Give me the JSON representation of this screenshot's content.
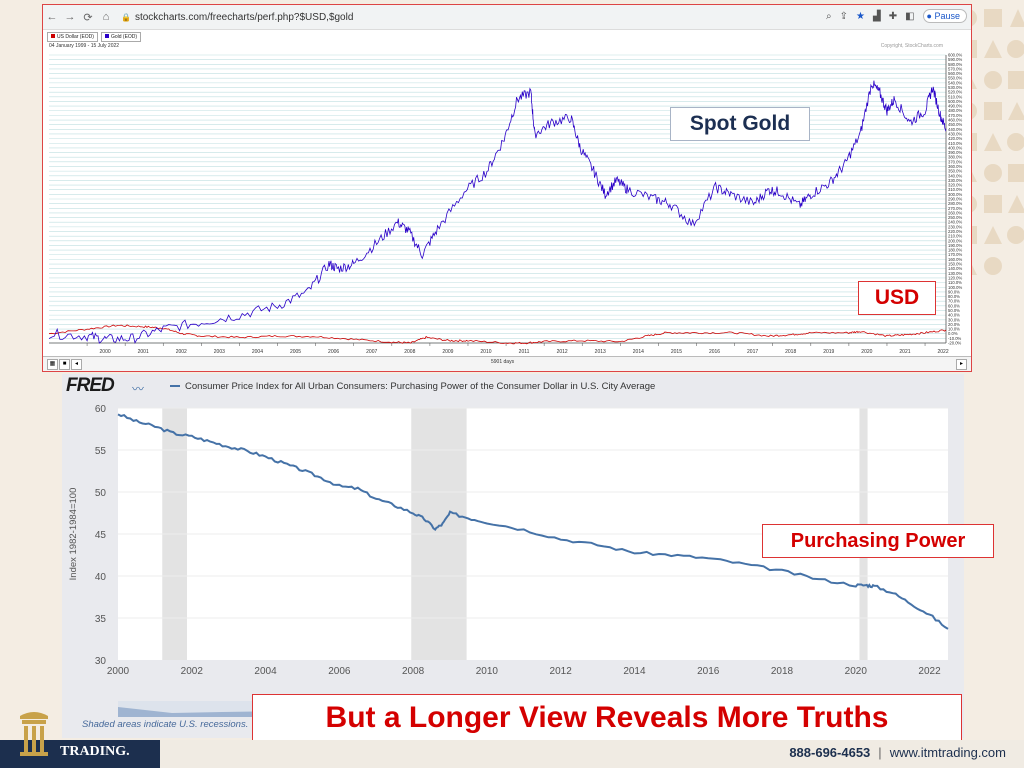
{
  "browser": {
    "url": "stockcharts.com/freecharts/perf.php?$USD,$gold",
    "pause_label": "Pause",
    "icons": [
      "back-icon",
      "forward-icon",
      "reload-icon",
      "home-icon",
      "lock-icon",
      "zoom-icon",
      "share-icon",
      "star-icon",
      "chart-icon",
      "puzzle-icon",
      "sidebar-icon",
      "avatar-icon"
    ]
  },
  "stockcharts": {
    "legend": [
      {
        "label": "US Dollar (EOD)",
        "color": "#cc0000"
      },
      {
        "label": "Gold (EOD)",
        "color": "#2a00c8"
      }
    ],
    "date_range": "04 January 1999 - 15 July 2022",
    "copyright": "Copyright, StockCharts.com",
    "days_label": "5901 days",
    "colors": {
      "gold": "#2a00c8",
      "usd": "#cc0000",
      "grid": "#bfdfe0"
    }
  },
  "callouts": {
    "spot_gold": "Spot Gold",
    "usd": "USD",
    "purchasing_power": "Purchasing Power",
    "headline": "But a Longer View Reveals More Truths"
  },
  "fred": {
    "logo": "FRED",
    "title": "Consumer Price Index for All Urban Consumers: Purchasing Power of the Consumer Dollar in U.S. City Average",
    "note": "Shaded areas indicate U.S. recessions.",
    "recessions": [
      [
        2001.2,
        2001.87
      ],
      [
        2007.95,
        2009.45
      ],
      [
        2020.1,
        2020.32
      ]
    ]
  },
  "footer": {
    "phone": "888-696-4653",
    "site": "www.itmtrading.com",
    "logo_text": "TRADING."
  },
  "chart_data": [
    {
      "type": "line",
      "title": "",
      "ylabel": "",
      "x_ticks": [
        "2000",
        "2001",
        "2002",
        "2003",
        "2004",
        "2005",
        "2006",
        "2007",
        "2008",
        "2009",
        "2010",
        "2011",
        "2012",
        "2013",
        "2014",
        "2015",
        "2016",
        "2017",
        "2018",
        "2019",
        "2020",
        "2021",
        "2022"
      ],
      "ylim": [
        -20,
        600
      ],
      "y_unit": "%",
      "series": [
        {
          "name": "Gold (EOD)",
          "x": [
            1999.0,
            2000.0,
            2000.5,
            2001.2,
            2002.0,
            2003.0,
            2004.0,
            2005.0,
            2005.8,
            2006.35,
            2006.6,
            2007.0,
            2007.6,
            2008.15,
            2008.45,
            2008.8,
            2009.2,
            2009.9,
            2010.5,
            2010.95,
            2011.3,
            2011.65,
            2011.75,
            2012.2,
            2012.7,
            2012.95,
            2013.3,
            2013.6,
            2013.9,
            2014.2,
            2014.9,
            2015.3,
            2015.9,
            2016.5,
            2016.9,
            2017.5,
            2017.9,
            2018.2,
            2018.7,
            2019.0,
            2019.5,
            2019.9,
            2020.3,
            2020.6,
            2020.8,
            2021.0,
            2021.2,
            2021.6,
            2022.0,
            2022.2,
            2022.4,
            2022.55
          ],
          "values": [
            0,
            -5,
            -12,
            -10,
            10,
            25,
            40,
            60,
            90,
            150,
            140,
            150,
            195,
            240,
            220,
            170,
            225,
            305,
            350,
            420,
            505,
            520,
            430,
            455,
            465,
            400,
            350,
            300,
            330,
            310,
            290,
            280,
            235,
            315,
            300,
            280,
            310,
            305,
            275,
            300,
            325,
            365,
            430,
            540,
            520,
            480,
            505,
            455,
            480,
            530,
            470,
            440
          ]
        },
        {
          "name": "US Dollar (EOD)",
          "x": [
            1999.0,
            2000.0,
            2000.8,
            2001.5,
            2002.0,
            2002.5,
            2003.0,
            2004.0,
            2005.0,
            2006.0,
            2007.0,
            2008.0,
            2008.5,
            2008.9,
            2009.5,
            2010.0,
            2011.0,
            2011.5,
            2012.0,
            2013.0,
            2014.0,
            2014.7,
            2015.2,
            2016.0,
            2017.0,
            2017.9,
            2018.5,
            2019.0,
            2020.0,
            2020.3,
            2021.0,
            2021.5,
            2022.0,
            2022.55
          ],
          "values": [
            0,
            10,
            18,
            15,
            12,
            0,
            -5,
            -8,
            -5,
            -6,
            -12,
            -18,
            -20,
            -8,
            -15,
            -15,
            -20,
            -20,
            -17,
            -15,
            -17,
            -5,
            2,
            2,
            2,
            -5,
            -2,
            2,
            2,
            5,
            -5,
            -2,
            2,
            8
          ]
        }
      ]
    },
    {
      "type": "line",
      "title": "Consumer Price Index for All Urban Consumers: Purchasing Power of the Consumer Dollar in U.S. City Average",
      "ylabel": "Index 1982-1984=100",
      "xlabel": "",
      "ylim": [
        30,
        60
      ],
      "yticks": [
        30,
        35,
        40,
        45,
        50,
        55,
        60
      ],
      "xticks": [
        2000,
        2002,
        2004,
        2006,
        2008,
        2010,
        2012,
        2014,
        2016,
        2018,
        2020,
        2022
      ],
      "xlim": [
        2000,
        2022.5
      ],
      "series": [
        {
          "name": "Consumer Price Index for All Urban Consumers: Purchasing Power of the Consumer Dollar in U.S. City Average",
          "x": [
            2000.0,
            2000.5,
            2001.0,
            2001.5,
            2002.0,
            2002.5,
            2003.0,
            2003.5,
            2004.0,
            2004.5,
            2005.0,
            2005.5,
            2006.0,
            2006.5,
            2007.0,
            2007.5,
            2008.0,
            2008.3,
            2008.6,
            2008.8,
            2009.0,
            2009.5,
            2010.0,
            2011.0,
            2012.0,
            2013.0,
            2014.0,
            2015.0,
            2016.0,
            2017.0,
            2018.0,
            2019.0,
            2020.0,
            2020.3,
            2020.5,
            2021.0,
            2021.5,
            2022.0,
            2022.5
          ],
          "values": [
            59.3,
            58.4,
            57.8,
            57.0,
            56.6,
            56.0,
            55.4,
            54.9,
            54.2,
            53.4,
            52.6,
            51.7,
            50.7,
            50.4,
            49.2,
            48.4,
            47.5,
            46.8,
            45.6,
            46.2,
            47.5,
            46.9,
            46.4,
            45.5,
            44.4,
            43.7,
            42.8,
            42.5,
            42.1,
            41.4,
            40.6,
            39.6,
            38.9,
            38.9,
            38.8,
            38.0,
            36.7,
            35.4,
            33.7
          ]
        }
      ]
    }
  ]
}
